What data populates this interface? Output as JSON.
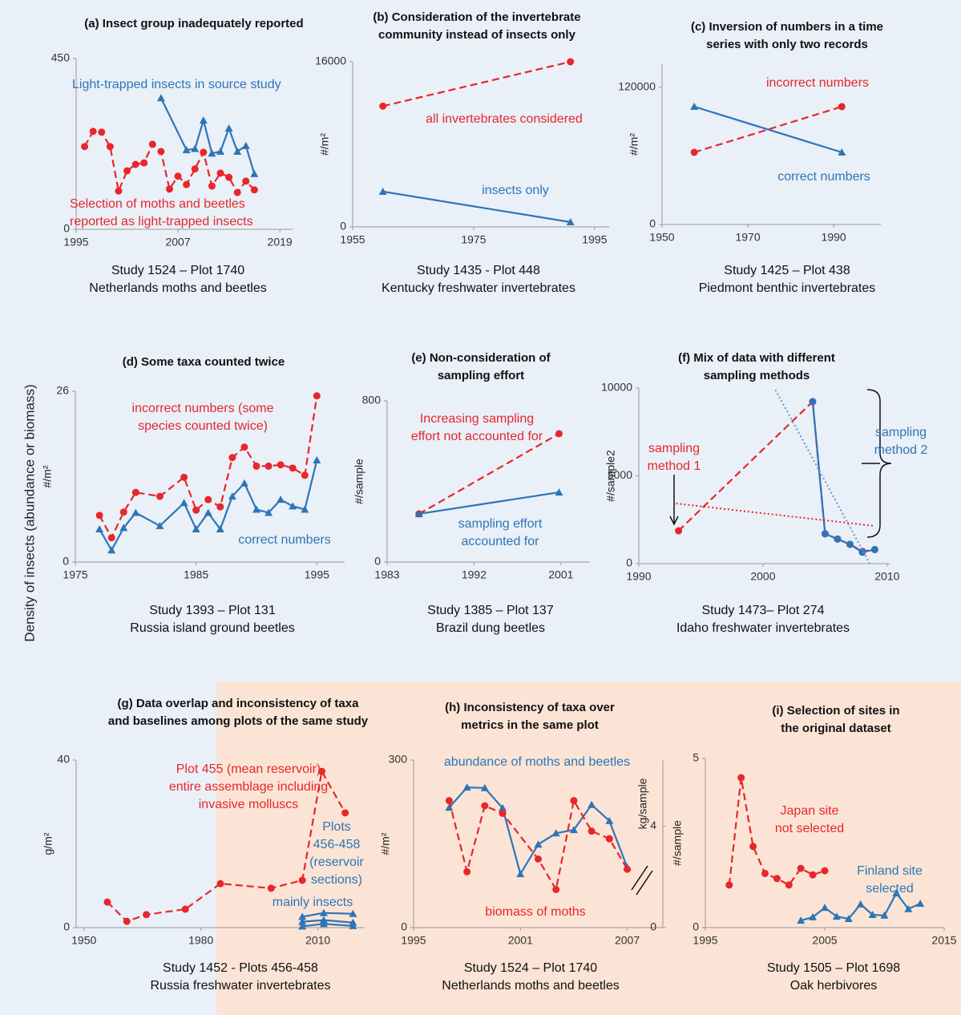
{
  "ylabel": "Density of insects (abundance or biomass)",
  "chart_data": [
    {
      "type": "line",
      "title": [
        "(a) Insect group inadequately reported"
      ],
      "caption": [
        "Study 1524 – Plot 1740",
        "Netherlands moths and beetles"
      ],
      "xlim": [
        1995,
        2020.5
      ],
      "xticks": [
        1995,
        2007,
        2019
      ],
      "ylim": [
        0,
        450
      ],
      "yticks": [
        0,
        450
      ],
      "series": [
        {
          "color": "#e8262b",
          "marker": "circle",
          "style": "dashed",
          "x": [
            1996,
            1997,
            1998,
            1999,
            2000,
            2001,
            2002,
            2003,
            2004,
            2005,
            2006,
            2007,
            2008,
            2009,
            2010,
            2011,
            2012,
            2013,
            2014,
            2015,
            2016
          ],
          "values": [
            218,
            258,
            256,
            218,
            101,
            154,
            171,
            175,
            224,
            205,
            106,
            140,
            118,
            159,
            203,
            114,
            148,
            137,
            97,
            127,
            104
          ]
        },
        {
          "color": "#2e75b6",
          "marker": "triangle",
          "style": "solid",
          "x": [
            2005,
            2008,
            2009,
            2010,
            2011,
            2012,
            2013,
            2014,
            2015,
            2016
          ],
          "values": [
            346,
            209,
            212,
            287,
            200,
            205,
            266,
            205,
            220,
            146
          ]
        }
      ],
      "annotations": [
        {
          "text": [
            "Light-trapped insects in source study"
          ],
          "color": "#2e75b6"
        },
        {
          "text": [
            "Selection of moths and beetles",
            "reported as light-trapped insects"
          ],
          "color": "#e8262b"
        }
      ]
    },
    {
      "type": "line",
      "title": [
        "(b) Consideration of the invertebrate",
        "community instead of insects only"
      ],
      "caption": [
        "Study 1435 - Plot 448",
        "Kentucky freshwater invertebrates"
      ],
      "ylabel": "#/m²",
      "xlim": [
        1955,
        1997.4
      ],
      "xticks": [
        1955,
        1975,
        1995
      ],
      "ylim": [
        0,
        16000
      ],
      "yticks": [
        0,
        16000
      ],
      "series": [
        {
          "color": "#e8262b",
          "marker": "circle",
          "style": "dashed",
          "x": [
            1960,
            1991
          ],
          "values": [
            11700,
            16000
          ]
        },
        {
          "color": "#2e75b6",
          "marker": "triangle",
          "style": "solid",
          "x": [
            1960,
            1991
          ],
          "values": [
            3420,
            466
          ]
        }
      ],
      "annotations": [
        {
          "text": [
            "all invertebrates considered"
          ],
          "color": "#e8262b"
        },
        {
          "text": [
            "insects only"
          ],
          "color": "#2e75b6"
        }
      ]
    },
    {
      "type": "line",
      "title": [
        "(c) Inversion of numbers in a time",
        "series with only two records"
      ],
      "caption": [
        "Study 1425 – Plot 438",
        "Piedmont benthic invertebrates"
      ],
      "ylabel": "#/m²",
      "xlim": [
        1950,
        2001
      ],
      "xticks": [
        1950,
        1970,
        1990
      ],
      "ylim": [
        0,
        140000
      ],
      "yticks": [
        0,
        120000
      ],
      "series": [
        {
          "color": "#e8262b",
          "marker": "circle",
          "style": "dashed",
          "x": [
            1957.5,
            1991.9
          ],
          "values": [
            63000,
            102900
          ]
        },
        {
          "color": "#2e75b6",
          "marker": "triangle",
          "style": "solid",
          "x": [
            1957.5,
            1991.9
          ],
          "values": [
            102900,
            63000
          ]
        }
      ],
      "annotations": [
        {
          "text": [
            "incorrect numbers"
          ],
          "color": "#e8262b"
        },
        {
          "text": [
            "correct numbers"
          ],
          "color": "#2e75b6"
        }
      ]
    },
    {
      "type": "line",
      "title": [
        "(d) Some taxa counted twice"
      ],
      "caption": [
        "Study 1393 – Plot 131",
        "Russia island ground beetles"
      ],
      "ylabel": "#/m²",
      "xlim": [
        1975,
        1997.3
      ],
      "xticks": [
        1975,
        1985,
        1995
      ],
      "ylim": [
        0,
        26
      ],
      "yticks": [
        0,
        26
      ],
      "series": [
        {
          "color": "#e8262b",
          "marker": "circle",
          "style": "dashed",
          "x": [
            1977,
            1978,
            1979,
            1980,
            1982,
            1984,
            1985,
            1986,
            1987,
            1988,
            1989,
            1990,
            1991,
            1992,
            1993,
            1994,
            1995
          ],
          "values": [
            7.1,
            3.7,
            7.6,
            10.6,
            10,
            12.9,
            7.9,
            9.5,
            8.4,
            15.9,
            17.5,
            14.6,
            14.6,
            14.8,
            14.3,
            13.2,
            25.3
          ]
        },
        {
          "color": "#2e75b6",
          "marker": "triangle",
          "style": "solid",
          "x": [
            1977,
            1978,
            1979,
            1980,
            1982,
            1984,
            1985,
            1986,
            1987,
            1988,
            1989,
            1990,
            1991,
            1992,
            1993,
            1994,
            1995
          ],
          "values": [
            5,
            1.8,
            5.2,
            7.5,
            5.5,
            9,
            5,
            7.5,
            5,
            10,
            12,
            8,
            7.5,
            9.5,
            8.5,
            8,
            15.5
          ]
        }
      ],
      "annotations": [
        {
          "text": [
            "incorrect numbers (some",
            "species counted twice)"
          ],
          "color": "#e8262b"
        },
        {
          "text": [
            "correct numbers"
          ],
          "color": "#2e75b6"
        }
      ]
    },
    {
      "type": "line",
      "title": [
        "(e) Non-consideration of",
        "sampling effort"
      ],
      "caption": [
        "Study 1385 – Plot 137",
        "Brazil dung beetles"
      ],
      "ylabel": "#/sample",
      "xlim": [
        1983,
        2004
      ],
      "xticks": [
        1983,
        1992,
        2001
      ],
      "ylim": [
        0,
        800
      ],
      "yticks": [
        0,
        800
      ],
      "series": [
        {
          "color": "#e8262b",
          "marker": "circle",
          "style": "dashed",
          "x": [
            1986.3,
            2000.8
          ],
          "values": [
            239,
            637
          ]
        },
        {
          "color": "#2e75b6",
          "marker": "triangle",
          "style": "solid",
          "x": [
            1986.3,
            2000.8
          ],
          "values": [
            239,
            346
          ]
        }
      ],
      "annotations": [
        {
          "text": [
            "Increasing sampling",
            "effort not accounted for"
          ],
          "color": "#e8262b"
        },
        {
          "text": [
            "sampling effort",
            "accounted for"
          ],
          "color": "#2e75b6"
        }
      ]
    },
    {
      "type": "line",
      "title": [
        "(f) Mix of data with different",
        "sampling methods"
      ],
      "caption": [
        "Study 1473– Plot 274",
        "Idaho freshwater invertebrates"
      ],
      "ylabel": "#/sample2",
      "xlim": [
        1990,
        2010.2
      ],
      "xticks": [
        1990,
        2000,
        2010
      ],
      "ylim": [
        0,
        10000
      ],
      "yticks": [
        0,
        5000,
        10000
      ],
      "series": [
        {
          "color": "#e8262b",
          "marker": "circle",
          "style": "dashed",
          "x": [
            1993.2,
            2004,
            2005,
            2006,
            2007,
            2008,
            2009
          ],
          "values": [
            1870,
            9224,
            1700,
            1400,
            1100,
            700,
            800
          ]
        },
        {
          "color": "#2e75b6",
          "marker": "circle",
          "style": "solid",
          "x": [
            2004,
            2005,
            2006,
            2007,
            2008,
            2009
          ],
          "values": [
            9224,
            1700,
            1400,
            1100,
            650,
            800
          ]
        },
        {
          "color": "#e8262b",
          "marker": "none",
          "style": "dotted",
          "x": [
            1993,
            2009
          ],
          "values": [
            3425,
            2146
          ]
        },
        {
          "color": "#5b9bd5",
          "marker": "none",
          "style": "dotted",
          "x": [
            2001,
            2008.6
          ],
          "values": [
            9900,
            0
          ]
        }
      ],
      "annotations": [
        {
          "text": [
            "sampling",
            "method 1"
          ],
          "color": "#e8262b"
        },
        {
          "text": [
            "sampling",
            "method 2"
          ],
          "color": "#2e75b6"
        }
      ]
    },
    {
      "type": "line",
      "title": [
        "(g) Data overlap and inconsistency of taxa",
        "and baselines among plots of the same study"
      ],
      "caption": [
        "Study 1452 - Plots 456-458",
        "Russia freshwater invertebrates"
      ],
      "ylabel": "g/m²",
      "xlim": [
        1948,
        2022
      ],
      "xticks": [
        1950,
        1980,
        2010
      ],
      "ylim": [
        0,
        40
      ],
      "yticks": [
        0,
        40
      ],
      "series": [
        {
          "color": "#e8262b",
          "marker": "circle",
          "style": "dashed",
          "x": [
            1956,
            1961,
            1966,
            1976,
            1985,
            1998,
            2006,
            2011,
            2017
          ],
          "values": [
            6.1,
            1.5,
            3.1,
            4.4,
            10.5,
            9.4,
            11.3,
            37.3,
            27.4
          ]
        },
        {
          "color": "#2e75b6",
          "marker": "triangle",
          "style": "solid",
          "x": [
            2006,
            2011.5,
            2019
          ],
          "values": [
            2.6,
            3.5,
            3.3
          ]
        },
        {
          "color": "#2e75b6",
          "marker": "triangle",
          "style": "solid",
          "x": [
            2006,
            2011.5,
            2019
          ],
          "values": [
            1.4,
            1.8,
            1.2
          ]
        },
        {
          "color": "#2e75b6",
          "marker": "triangle",
          "style": "solid",
          "x": [
            2006,
            2011.5,
            2019
          ],
          "values": [
            0.3,
            0.9,
            0.4
          ]
        }
      ],
      "annotations": [
        {
          "text": [
            "Plot 455 (mean reservoir)",
            "entire assemblage including",
            "invasive molluscs"
          ],
          "color": "#e8262b"
        },
        {
          "text": [
            "Plots",
            "456-458",
            "(reservoir",
            "sections)"
          ],
          "color": "#2e75b6"
        },
        {
          "text": [
            "mainly insects"
          ],
          "color": "#2e75b6"
        }
      ]
    },
    {
      "type": "line",
      "title": [
        "(h) Inconsistency of taxa over",
        "metrics in the same plot"
      ],
      "caption": [
        "Study 1524 – Plot 1740",
        "Netherlands moths and beetles"
      ],
      "ylabel": "#/m²",
      "y2label": "kg/sample",
      "xlim": [
        1995,
        2009
      ],
      "xticks": [
        1995,
        2001,
        2007
      ],
      "ylim": [
        0,
        300
      ],
      "yticks": [
        0,
        300
      ],
      "y2lim": [
        0,
        6.6
      ],
      "y2ticks": [
        0,
        4
      ],
      "series": [
        {
          "color": "#2e75b6",
          "marker": "triangle",
          "style": "solid",
          "x": [
            1997,
            1998,
            1999,
            2000,
            2001,
            2002,
            2003,
            2004,
            2005,
            2006,
            2007
          ],
          "values": [
            215,
            251,
            250,
            214,
            96,
            149,
            169,
            175,
            220,
            191,
            108
          ]
        },
        {
          "color": "#e8262b",
          "marker": "circle",
          "style": "dashed",
          "axis": "y2",
          "x": [
            1997,
            1998,
            1999,
            2000,
            2002,
            2003,
            2004,
            2005,
            2006,
            2007
          ],
          "values": [
            5.0,
            2.2,
            4.8,
            4.5,
            2.7,
            1.5,
            5.0,
            3.8,
            3.5,
            2.3
          ]
        }
      ],
      "annotations": [
        {
          "text": [
            "abundance of moths and beetles"
          ],
          "color": "#2e75b6"
        },
        {
          "text": [
            "biomass of moths"
          ],
          "color": "#e8262b"
        }
      ]
    },
    {
      "type": "line",
      "title": [
        "(i) Selection of sites in",
        "the original dataset"
      ],
      "caption": [
        "Study 1505 – Plot 1698",
        "Oak herbivores"
      ],
      "ylabel": "#/sample",
      "xlim": [
        1995,
        2015
      ],
      "xticks": [
        1995,
        2005,
        2015
      ],
      "ylim": [
        0,
        5
      ],
      "yticks": [
        0,
        5
      ],
      "series": [
        {
          "color": "#e8262b",
          "marker": "circle",
          "style": "dashed",
          "x": [
            1997,
            1998,
            1999,
            2000,
            2001,
            2002,
            2003,
            2004,
            2005
          ],
          "values": [
            1.26,
            4.43,
            2.4,
            1.6,
            1.45,
            1.26,
            1.75,
            1.56,
            1.68
          ]
        },
        {
          "color": "#2e75b6",
          "marker": "triangle",
          "style": "solid",
          "x": [
            2003,
            2004,
            2005,
            2006,
            2007,
            2008,
            2009,
            2010,
            2011,
            2012,
            2013
          ],
          "values": [
            0.21,
            0.31,
            0.59,
            0.33,
            0.26,
            0.69,
            0.38,
            0.36,
            1.02,
            0.55,
            0.71
          ]
        }
      ],
      "annotations": [
        {
          "text": [
            "Japan site",
            "not selected"
          ],
          "color": "#e8262b"
        },
        {
          "text": [
            "Finland site",
            "selected"
          ],
          "color": "#2e75b6"
        }
      ]
    }
  ]
}
